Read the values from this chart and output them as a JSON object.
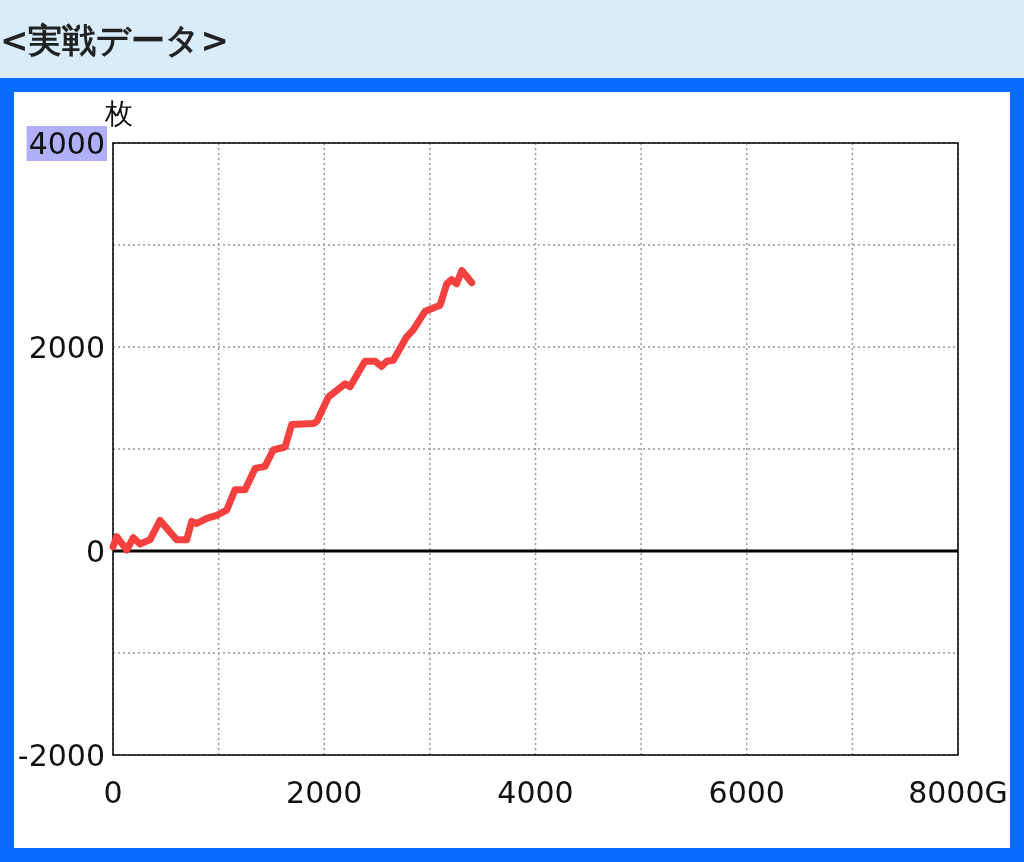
{
  "chart_data": {
    "type": "line",
    "title": "<実戦データ>",
    "ylabel": "枚",
    "x": [
      0,
      35,
      130,
      192,
      256,
      350,
      445,
      603,
      698,
      745,
      792,
      887,
      982,
      1076,
      1155,
      1250,
      1345,
      1439,
      1518,
      1629,
      1692,
      1897,
      1929,
      2039,
      2197,
      2244,
      2386,
      2481,
      2544,
      2592,
      2654,
      2781,
      2844,
      2955,
      3097,
      3160,
      3207,
      3254,
      3302,
      3397
    ],
    "series": [
      {
        "color": "#f54040",
        "values": [
          40,
          140,
          10,
          130,
          70,
          110,
          300,
          110,
          110,
          290,
          270,
          320,
          350,
          400,
          600,
          600,
          810,
          830,
          990,
          1020,
          1240,
          1250,
          1270,
          1510,
          1640,
          1610,
          1860,
          1860,
          1810,
          1860,
          1870,
          2100,
          2170,
          2350,
          2410,
          2620,
          2660,
          2620,
          2750,
          2630
        ]
      }
    ],
    "xlim": [
      0,
      8000
    ],
    "ylim": [
      -2000,
      4000
    ],
    "xticks": [
      0,
      {
        "value": 1000,
        "label": null
      },
      2000,
      {
        "value": 3000,
        "label": null
      },
      4000,
      {
        "value": 5000,
        "label": null
      },
      6000,
      {
        "value": 7000,
        "label": null
      },
      {
        "value": 8000,
        "label": "8000G"
      }
    ],
    "yticks": [
      -2000,
      {
        "value": -1000,
        "label": null
      },
      0,
      {
        "value": 1000,
        "label": null
      },
      2000,
      {
        "value": 3000,
        "label": null
      },
      4000
    ],
    "grid": true,
    "ref_lines": [
      {
        "axis": "y",
        "value": 0,
        "color": "#000000",
        "line_style": "solid"
      }
    ],
    "marker": "none",
    "line_style": "solid"
  }
}
